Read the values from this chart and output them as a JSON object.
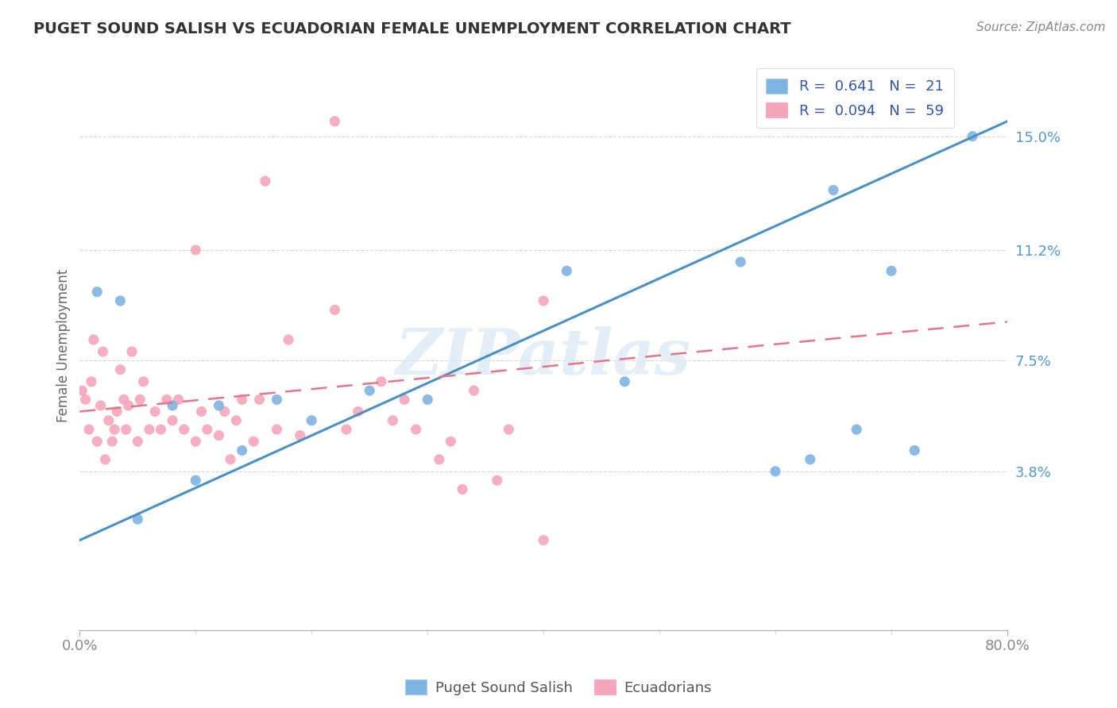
{
  "title": "PUGET SOUND SALISH VS ECUADORIAN FEMALE UNEMPLOYMENT CORRELATION CHART",
  "source": "Source: ZipAtlas.com",
  "ylabel": "Female Unemployment",
  "xlim": [
    0,
    80
  ],
  "ylim": [
    -1.5,
    17.5
  ],
  "yticks": [
    3.8,
    7.5,
    11.2,
    15.0
  ],
  "xtick_labels": [
    "0.0%",
    "80.0%"
  ],
  "ytick_labels": [
    "3.8%",
    "7.5%",
    "11.2%",
    "15.0%"
  ],
  "blue_R": "0.641",
  "blue_N": "21",
  "pink_R": "0.094",
  "pink_N": "59",
  "blue_color": "#7EB4E2",
  "blue_line_color": "#4A90C4",
  "pink_color": "#F4A7B9",
  "pink_line_color": "#E8748A",
  "blue_scatter": [
    [
      1.5,
      9.8
    ],
    [
      3.5,
      9.5
    ],
    [
      5,
      2.2
    ],
    [
      8,
      6.0
    ],
    [
      10,
      3.5
    ],
    [
      12,
      6.0
    ],
    [
      14,
      4.5
    ],
    [
      17,
      6.2
    ],
    [
      20,
      5.5
    ],
    [
      25,
      6.5
    ],
    [
      30,
      6.2
    ],
    [
      42,
      10.5
    ],
    [
      47,
      6.8
    ],
    [
      57,
      10.8
    ],
    [
      63,
      4.2
    ],
    [
      65,
      13.2
    ],
    [
      67,
      5.2
    ],
    [
      70,
      10.5
    ],
    [
      60,
      3.8
    ],
    [
      72,
      4.5
    ],
    [
      77,
      15.0
    ]
  ],
  "pink_scatter": [
    [
      0.2,
      6.5
    ],
    [
      0.5,
      6.2
    ],
    [
      0.8,
      5.2
    ],
    [
      1.0,
      6.8
    ],
    [
      1.2,
      8.2
    ],
    [
      1.5,
      4.8
    ],
    [
      1.8,
      6.0
    ],
    [
      2.0,
      7.8
    ],
    [
      2.2,
      4.2
    ],
    [
      2.5,
      5.5
    ],
    [
      2.8,
      4.8
    ],
    [
      3.0,
      5.2
    ],
    [
      3.2,
      5.8
    ],
    [
      3.5,
      7.2
    ],
    [
      3.8,
      6.2
    ],
    [
      4.0,
      5.2
    ],
    [
      4.2,
      6.0
    ],
    [
      4.5,
      7.8
    ],
    [
      5.0,
      4.8
    ],
    [
      5.2,
      6.2
    ],
    [
      5.5,
      6.8
    ],
    [
      6.0,
      5.2
    ],
    [
      6.5,
      5.8
    ],
    [
      7.0,
      5.2
    ],
    [
      7.5,
      6.2
    ],
    [
      8.0,
      5.5
    ],
    [
      8.5,
      6.2
    ],
    [
      9.0,
      5.2
    ],
    [
      10.0,
      4.8
    ],
    [
      10.5,
      5.8
    ],
    [
      11.0,
      5.2
    ],
    [
      12.0,
      5.0
    ],
    [
      12.5,
      5.8
    ],
    [
      13.0,
      4.2
    ],
    [
      13.5,
      5.5
    ],
    [
      14.0,
      6.2
    ],
    [
      15.0,
      4.8
    ],
    [
      15.5,
      6.2
    ],
    [
      17.0,
      5.2
    ],
    [
      18.0,
      8.2
    ],
    [
      19.0,
      5.0
    ],
    [
      22.0,
      9.2
    ],
    [
      23.0,
      5.2
    ],
    [
      24.0,
      5.8
    ],
    [
      26.0,
      6.8
    ],
    [
      27.0,
      5.5
    ],
    [
      28.0,
      6.2
    ],
    [
      29.0,
      5.2
    ],
    [
      31.0,
      4.2
    ],
    [
      32.0,
      4.8
    ],
    [
      33.0,
      3.2
    ],
    [
      34.0,
      6.5
    ],
    [
      36.0,
      3.5
    ],
    [
      37.0,
      5.2
    ],
    [
      40.0,
      1.5
    ],
    [
      22.0,
      15.5
    ],
    [
      16.0,
      13.5
    ],
    [
      10.0,
      11.2
    ],
    [
      40.0,
      9.5
    ]
  ],
  "blue_trend_x": [
    0,
    80
  ],
  "blue_trend_y": [
    1.5,
    15.5
  ],
  "pink_trend_x": [
    0,
    80
  ],
  "pink_trend_y": [
    5.8,
    8.8
  ],
  "watermark": "ZIPatlas",
  "grid_color": "#CCCCCC",
  "bg_color": "#FFFFFF"
}
